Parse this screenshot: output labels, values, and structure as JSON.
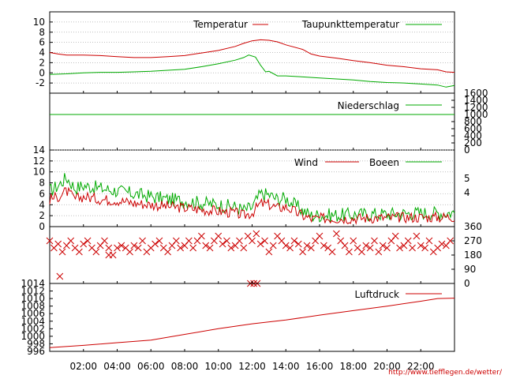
{
  "credit": "http://www.tiefflegen.de/wetter/",
  "x_ticks": [
    "02:00",
    "04:00",
    "06:00",
    "08:00",
    "10:00",
    "12:00",
    "14:00",
    "16:00",
    "18:00",
    "20:00",
    "22:00"
  ],
  "colors": {
    "temperature": "#cc0000",
    "dewpoint": "#00aa00",
    "precipitation": "#00aa00",
    "wind": "#cc0000",
    "gust": "#00aa00",
    "direction": "#cc0000",
    "pressure": "#cc0000"
  },
  "chart_data": [
    {
      "type": "line",
      "x_range": [
        0,
        24
      ],
      "ylim": [
        -4,
        12
      ],
      "y_ticks": [
        "10",
        "8",
        "6",
        "4",
        "2",
        "0",
        "-2"
      ],
      "grid": true,
      "legend_position": "top-right",
      "series": [
        {
          "name": "Temperatur",
          "x": [
            0,
            0.5,
            1,
            2,
            3,
            4,
            5,
            6,
            7,
            8,
            9,
            10,
            11,
            11.5,
            12,
            12.5,
            13,
            13.5,
            14,
            15,
            15.5,
            16,
            17,
            18,
            19,
            20,
            21,
            22,
            23,
            23.5,
            24
          ],
          "values": [
            4.0,
            3.7,
            3.5,
            3.5,
            3.4,
            3.2,
            3.0,
            3.0,
            3.2,
            3.4,
            3.9,
            4.4,
            5.2,
            5.8,
            6.3,
            6.5,
            6.4,
            6.1,
            5.5,
            4.6,
            3.7,
            3.3,
            2.9,
            2.4,
            2.0,
            1.5,
            1.2,
            0.8,
            0.6,
            0.2,
            0.1
          ]
        },
        {
          "name": "Taupunkttemperatur",
          "x": [
            0,
            1,
            2,
            3,
            4,
            5,
            6,
            7,
            8,
            9,
            10,
            11,
            11.5,
            11.8,
            12.2,
            12.5,
            12.8,
            13,
            13.5,
            14,
            15,
            16,
            17,
            18,
            19,
            20,
            21,
            22,
            23,
            23.5,
            24
          ],
          "values": [
            -0.3,
            -0.2,
            0,
            0.1,
            0.1,
            0.2,
            0.3,
            0.5,
            0.7,
            1.2,
            1.8,
            2.5,
            3.0,
            3.5,
            3.1,
            1.5,
            0.2,
            0.3,
            -0.6,
            -0.6,
            -0.8,
            -1.0,
            -1.2,
            -1.4,
            -1.7,
            -1.9,
            -2.0,
            -2.2,
            -2.4,
            -2.8,
            -2.5
          ]
        }
      ]
    },
    {
      "type": "line",
      "x_range": [
        0,
        24
      ],
      "ylim": [
        0,
        1600
      ],
      "y_ticks": [
        "1600",
        "1400",
        "1200",
        "1000",
        "800",
        "600",
        "400",
        "200",
        "0"
      ],
      "grid": false,
      "legend_position": "top-right",
      "series": [
        {
          "name": "Niederschlag",
          "x": [
            0,
            24
          ],
          "values": [
            1000,
            1000
          ]
        }
      ]
    },
    {
      "type": "line",
      "x_range": [
        0,
        24
      ],
      "ylim": [
        0,
        14
      ],
      "y_ticks": [
        "14",
        "12",
        "10",
        "8",
        "6",
        "4",
        "2",
        "0"
      ],
      "right_ticks": [
        "5",
        "4"
      ],
      "grid": true,
      "legend_position": "top-right",
      "series": [
        {
          "name": "Wind",
          "x": [
            0,
            0.5,
            1,
            1.5,
            2,
            3,
            4,
            5,
            6,
            7,
            8,
            9,
            10,
            11,
            11.5,
            12,
            12.5,
            13,
            13.5,
            14,
            14.5,
            15,
            15.5,
            16,
            17,
            18,
            19,
            20,
            21,
            22,
            23,
            24
          ],
          "values": [
            5,
            5.5,
            6.5,
            5,
            5.5,
            5,
            4.8,
            4.3,
            4,
            3.7,
            3.4,
            3.1,
            2.8,
            2.5,
            2.0,
            2.5,
            4.2,
            4.0,
            3.4,
            3.6,
            2.8,
            2.0,
            1.4,
            1.5,
            1.5,
            1.5,
            1.6,
            1.6,
            1.7,
            1.7,
            1.7,
            1.8
          ]
        },
        {
          "name": "Boeen",
          "x": [
            0,
            0.5,
            1,
            1.5,
            2,
            3,
            4,
            5,
            6,
            7,
            8,
            9,
            10,
            11,
            11.5,
            12,
            12.5,
            13,
            13.5,
            14,
            14.5,
            15,
            15.5,
            16,
            17,
            18,
            19,
            20,
            21,
            22,
            23,
            24
          ],
          "values": [
            6.5,
            7.5,
            9,
            7,
            7.5,
            7,
            6.5,
            6,
            5.5,
            5,
            4.7,
            4.3,
            4.0,
            3.6,
            3.0,
            3.5,
            6.0,
            5.8,
            5.0,
            5.2,
            4.0,
            3.0,
            2.0,
            2.1,
            2.1,
            2.2,
            2.3,
            2.3,
            2.4,
            2.5,
            2.5,
            2.6
          ]
        }
      ]
    },
    {
      "type": "scatter",
      "x_range": [
        0,
        24
      ],
      "ylim": [
        0,
        360
      ],
      "y_ticks": [
        "360",
        "270",
        "180",
        "90",
        "0"
      ],
      "grid": false,
      "series": [
        {
          "name": "",
          "x": [
            0.0,
            0.25,
            0.5,
            0.75,
            1.0,
            1.25,
            1.5,
            1.75,
            2.0,
            2.25,
            2.5,
            2.75,
            3.0,
            3.25,
            3.5,
            3.75,
            4.0,
            4.25,
            4.5,
            4.75,
            5.0,
            5.25,
            5.5,
            5.75,
            6.0,
            6.25,
            6.5,
            6.75,
            7.0,
            7.25,
            7.5,
            7.75,
            8.0,
            8.25,
            8.5,
            8.75,
            9.0,
            9.25,
            9.5,
            9.75,
            10.0,
            10.25,
            10.5,
            10.75,
            11.0,
            11.25,
            11.5,
            11.75,
            12.0,
            12.25,
            12.5,
            12.75,
            13.0,
            13.25,
            13.5,
            13.75,
            14.0,
            14.25,
            14.5,
            14.75,
            15.0,
            15.25,
            15.5,
            15.75,
            16.0,
            16.25,
            16.5,
            16.75,
            17.0,
            17.25,
            17.5,
            17.75,
            18.0,
            18.25,
            18.5,
            18.75,
            19.0,
            19.25,
            19.5,
            19.75,
            20.0,
            20.25,
            20.5,
            20.75,
            21.0,
            21.25,
            21.5,
            21.75,
            22.0,
            22.25,
            22.5,
            22.75,
            23.0,
            23.25,
            23.5,
            23.75,
            0.6,
            3.5,
            11.9,
            12.1,
            12.3
          ],
          "values": [
            270,
            225,
            250,
            200,
            240,
            270,
            225,
            200,
            250,
            270,
            225,
            200,
            240,
            270,
            225,
            180,
            225,
            240,
            225,
            200,
            240,
            225,
            270,
            200,
            225,
            250,
            270,
            225,
            200,
            240,
            270,
            225,
            240,
            270,
            225,
            270,
            300,
            240,
            225,
            270,
            300,
            250,
            270,
            225,
            240,
            270,
            225,
            300,
            270,
            315,
            250,
            270,
            200,
            240,
            300,
            270,
            240,
            225,
            270,
            250,
            200,
            240,
            225,
            270,
            300,
            240,
            225,
            200,
            315,
            270,
            240,
            200,
            270,
            225,
            200,
            240,
            225,
            270,
            200,
            240,
            225,
            270,
            300,
            225,
            240,
            270,
            225,
            300,
            240,
            225,
            270,
            200,
            225,
            250,
            240,
            270,
            45,
            180,
            0,
            0,
            0
          ]
        }
      ]
    },
    {
      "type": "line",
      "x_range": [
        0,
        24
      ],
      "ylim": [
        996,
        1014
      ],
      "y_ticks": [
        "1014",
        "1012",
        "1010",
        "1008",
        "1006",
        "1004",
        "1002",
        "1000",
        "998",
        "996"
      ],
      "grid": false,
      "legend_position": "top-right",
      "series": [
        {
          "name": "Luftdruck",
          "x": [
            0,
            2,
            4,
            6,
            8,
            10,
            12,
            14,
            16,
            18,
            20,
            22,
            23,
            24
          ],
          "values": [
            997.0,
            997.6,
            998.3,
            999.0,
            1000.5,
            1002.0,
            1003.3,
            1004.3,
            1005.6,
            1006.8,
            1008.0,
            1009.3,
            1010.0,
            1010.1
          ]
        }
      ]
    }
  ]
}
